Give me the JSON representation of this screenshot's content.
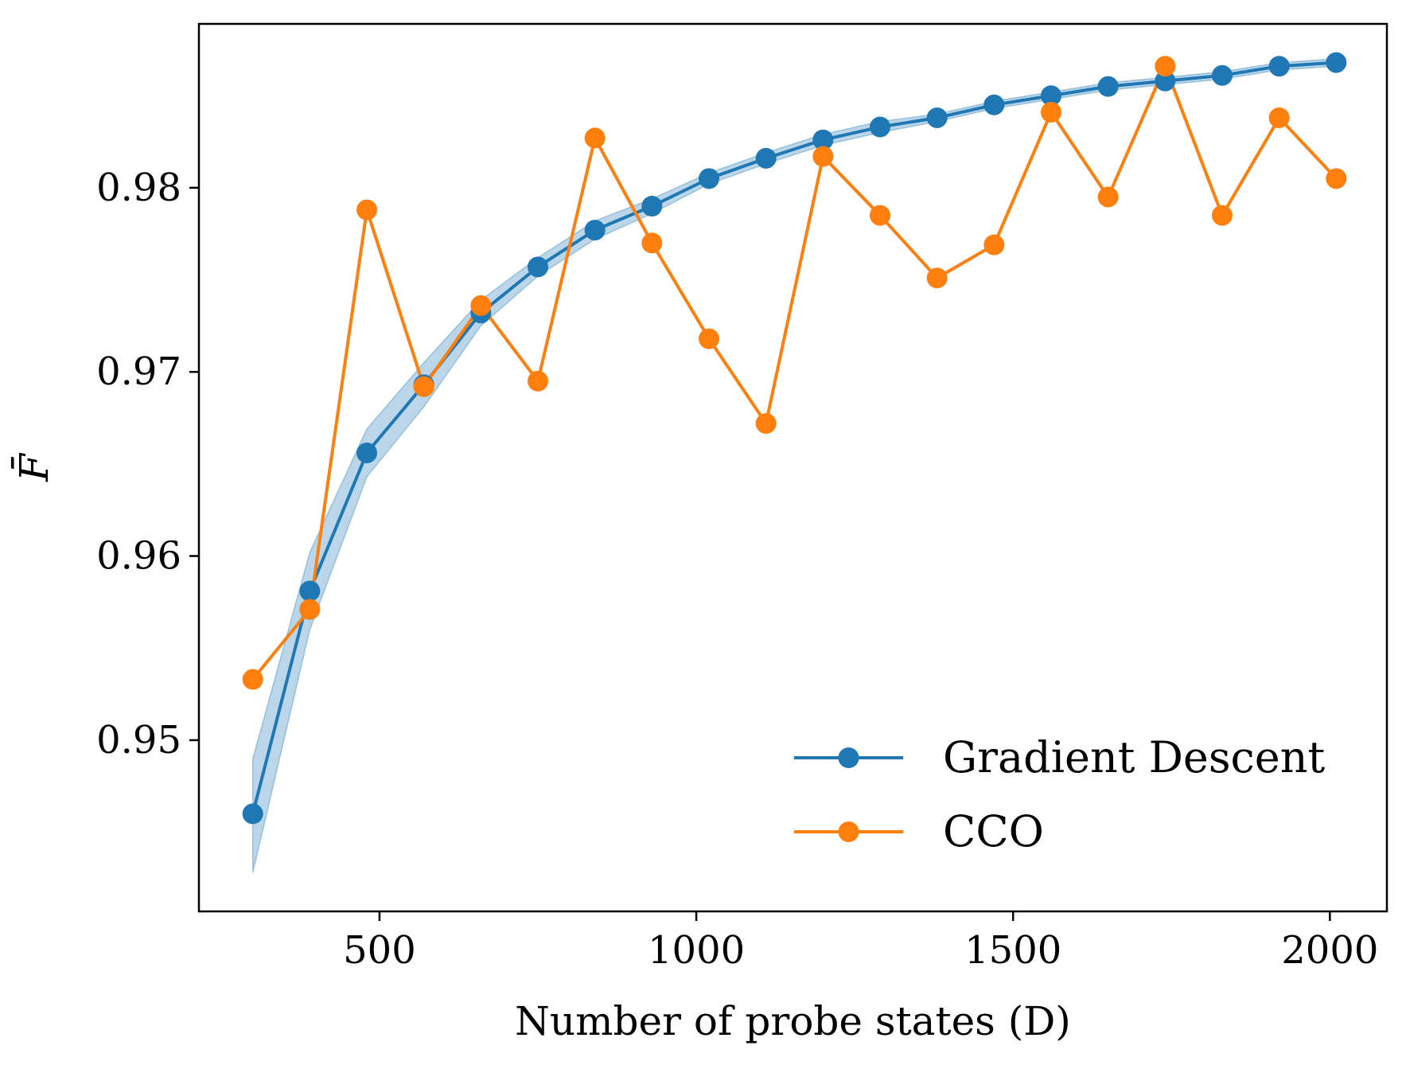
{
  "chart_data": {
    "type": "line",
    "title": "",
    "xlabel": "Number of probe states (D)",
    "ylabel": "F̄",
    "xlim": [
      215,
      2090
    ],
    "ylim": [
      0.9407,
      0.9889
    ],
    "xticks": [
      500,
      1000,
      1500,
      2000
    ],
    "xtick_labels": [
      "500",
      "1000",
      "1500",
      "2000"
    ],
    "yticks": [
      0.95,
      0.96,
      0.97,
      0.98
    ],
    "ytick_labels": [
      "0.95",
      "0.96",
      "0.97",
      "0.98"
    ],
    "grid": false,
    "legend": {
      "position": "bottom-right"
    },
    "x": [
      300,
      390,
      480,
      570,
      660,
      750,
      840,
      930,
      1020,
      1110,
      1200,
      1290,
      1380,
      1470,
      1560,
      1650,
      1740,
      1830,
      1920,
      2010
    ],
    "series": [
      {
        "name": "Gradient Descent",
        "color": "#1f77b4",
        "values": [
          0.946,
          0.9581,
          0.9656,
          0.9693,
          0.9732,
          0.9757,
          0.9777,
          0.979,
          0.9805,
          0.9816,
          0.9826,
          0.9833,
          0.9838,
          0.9845,
          0.985,
          0.9855,
          0.9858,
          0.9861,
          0.9866,
          0.9868
        ],
        "band_lower": [
          0.9428,
          0.956,
          0.9643,
          0.9681,
          0.9725,
          0.9752,
          0.9772,
          0.9786,
          0.9802,
          0.9813,
          0.9823,
          0.983,
          0.9836,
          0.9843,
          0.9848,
          0.9853,
          0.9856,
          0.9859,
          0.9864,
          0.9866
        ],
        "band_upper": [
          0.949,
          0.9602,
          0.9669,
          0.9705,
          0.9739,
          0.9762,
          0.9782,
          0.9794,
          0.9808,
          0.9819,
          0.9829,
          0.9836,
          0.984,
          0.9847,
          0.9852,
          0.9857,
          0.986,
          0.9863,
          0.9868,
          0.987
        ]
      },
      {
        "name": "CCO",
        "color": "#ff7f0e",
        "values": [
          0.9533,
          0.9571,
          0.9788,
          0.9692,
          0.9736,
          0.9695,
          0.9827,
          0.977,
          0.9718,
          0.9672,
          0.9817,
          0.9785,
          0.9751,
          0.9769,
          0.9841,
          0.9795,
          0.9866,
          0.9785,
          0.9838,
          0.9805
        ]
      }
    ]
  }
}
